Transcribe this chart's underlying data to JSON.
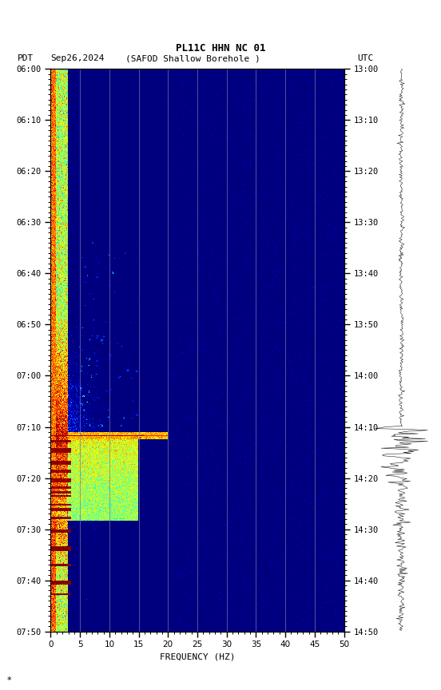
{
  "title_line1": "PL11C HHN NC 01",
  "left_label_pdt": "PDT",
  "date_label": "Sep26,2024",
  "station_label": "(SAFOD Shallow Borehole )",
  "right_label_utc": "UTC",
  "left_time_labels": [
    "06:00",
    "06:10",
    "06:20",
    "06:30",
    "06:40",
    "06:50",
    "07:00",
    "07:10",
    "07:20",
    "07:30",
    "07:40",
    "07:50"
  ],
  "right_time_labels": [
    "13:00",
    "13:10",
    "13:20",
    "13:30",
    "13:40",
    "13:50",
    "14:00",
    "14:10",
    "14:20",
    "14:30",
    "14:40",
    "14:50"
  ],
  "freq_min": 0,
  "freq_max": 50,
  "xlabel": "FREQUENCY (HZ)",
  "spec_cmap": "jet",
  "grid_color": "#7777aa",
  "n_time": 660,
  "n_freq": 500,
  "seed": 42,
  "noise_floor": -6.0,
  "note_char": "*"
}
